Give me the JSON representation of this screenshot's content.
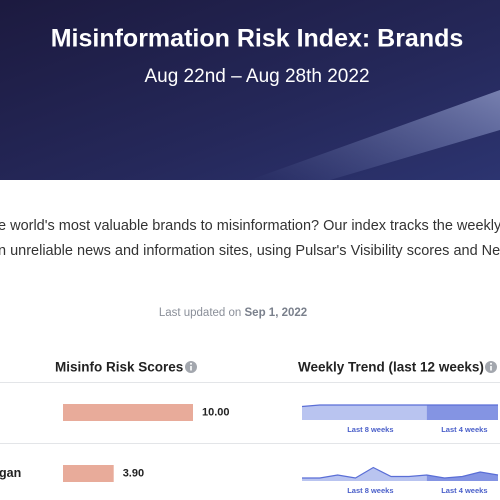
{
  "header": {
    "title": "Misinformation Risk Index: Brands",
    "subtitle": "Aug 22nd – Aug 28th 2022"
  },
  "intro": {
    "lines": [
      "e world's most valuable brands to misinformation? Our index tracks the weekly frequ",
      "n unreliable news and information sites, using Pulsar's Visibility scores and NewsGua"
    ]
  },
  "updated": {
    "prefix": "Last updated on",
    "date": "Sep 1, 2022"
  },
  "table": {
    "columns": [
      "Misinfo Risk Scores",
      "Weekly Trend (last 12 weeks)"
    ],
    "trend_periods": [
      "Last 8 weeks",
      "Last 4 weeks"
    ],
    "rows": [
      {
        "score": 10,
        "score_label": "10.00",
        "trend": [
          9,
          10,
          10,
          10,
          10,
          10,
          10,
          10,
          10,
          10,
          10,
          10
        ]
      },
      {
        "name": "gan",
        "score": 3.9,
        "score_label": "3.90",
        "trend": [
          2,
          2,
          4,
          2,
          9,
          3,
          3,
          4,
          2,
          3,
          6,
          4
        ]
      }
    ]
  }
}
